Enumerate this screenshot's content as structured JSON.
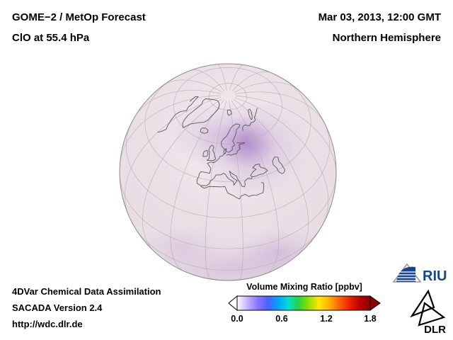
{
  "header": {
    "title": "GOME−2 / MetOp Forecast",
    "subtitle": "ClO at 55.4 hPa",
    "datetime": "Mar 03, 2013, 12:00 GMT",
    "hemisphere": "Northern Hemisphere"
  },
  "globe": {
    "description": "Orthographic globe of the Northern Hemisphere showing ClO volume mixing ratio as purple shading over Scandinavia and the lower limb",
    "base_color": "#ece0e7",
    "plume_color": "#a87fc0"
  },
  "footer": {
    "line1": "4DVar Chemical Data Assimilation",
    "line2": "SACADA Version 2.4",
    "line3": "http://wdc.dlr.de"
  },
  "colorbar": {
    "title": "Volume Mixing Ratio [ppbv]",
    "ticks": [
      "0.0",
      "0.6",
      "1.2",
      "1.8"
    ],
    "min": 0.0,
    "max": 1.8,
    "gradient": [
      "#ffffff",
      "#c4b2ff",
      "#8a74ff",
      "#4a62ff",
      "#00a2ff",
      "#00dfd0",
      "#2ad23c",
      "#95e000",
      "#ffe800",
      "#ffb000",
      "#ff6000",
      "#ef2000",
      "#b90000",
      "#8b0000"
    ],
    "arrow_left_color": "#ffffff",
    "arrow_right_color": "#8b0000"
  },
  "logos": {
    "riu_text": "RIU",
    "dlr_text": "DLR"
  }
}
